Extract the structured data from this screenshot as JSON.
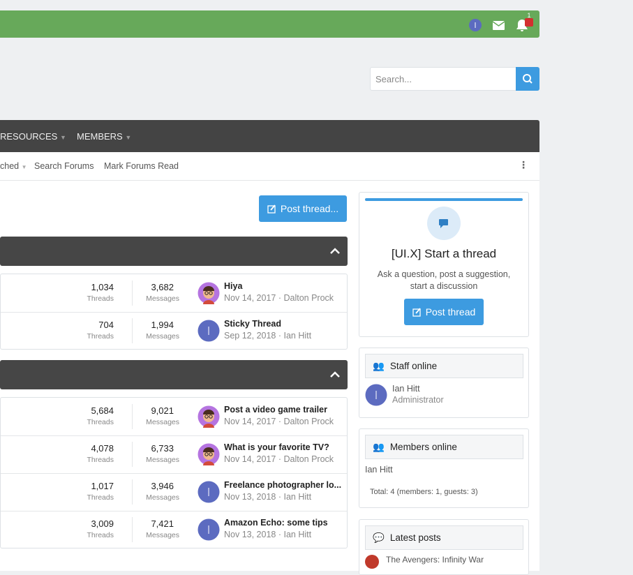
{
  "header": {
    "notification_count": "1",
    "search_placeholder": "Search..."
  },
  "nav": {
    "items": [
      "RESOURCES",
      "MEMBERS"
    ]
  },
  "subnav": {
    "items": [
      "ched",
      "Search Forums",
      "Mark Forums Read"
    ]
  },
  "main": {
    "post_button": "Post thread...",
    "labels": {
      "threads": "Threads",
      "messages": "Messages"
    },
    "categories": [
      {
        "rows": [
          {
            "threads": "1,034",
            "messages": "3,682",
            "title": "Hiya",
            "meta": "Nov 14, 2017 · Dalton Prock"
          },
          {
            "threads": "704",
            "messages": "1,994",
            "title": "Sticky Thread",
            "meta": "Sep 12, 2018 · Ian Hitt"
          }
        ]
      },
      {
        "rows": [
          {
            "threads": "5,684",
            "messages": "9,021",
            "title": "Post a video game trailer",
            "meta": "Nov 14, 2017 · Dalton Prock"
          },
          {
            "threads": "4,078",
            "messages": "6,733",
            "title": "What is your favorite TV?",
            "meta": "Nov 14, 2017 · Dalton Prock"
          },
          {
            "threads": "1,017",
            "messages": "3,946",
            "title": "Freelance photographer lo...",
            "meta": "Nov 13, 2018 · Ian Hitt"
          },
          {
            "threads": "3,009",
            "messages": "7,421",
            "title": "Amazon Echo: some tips",
            "meta": "Nov 13, 2018 · Ian Hitt"
          }
        ]
      }
    ]
  },
  "sidebar": {
    "start": {
      "title": "[UI.X] Start a thread",
      "text_lines": [
        "Ask a question, post a suggestion,",
        "start a discussion"
      ],
      "button": "Post thread"
    },
    "staff": {
      "title": "Staff online",
      "name": "Ian Hitt",
      "role": "Administrator"
    },
    "members": {
      "title": "Members online",
      "name": "Ian Hitt",
      "total": "Total: 4 (members: 1, guests: 3)"
    },
    "latest": {
      "title": "Latest posts",
      "first": "The Avengers: Infinity War"
    }
  }
}
